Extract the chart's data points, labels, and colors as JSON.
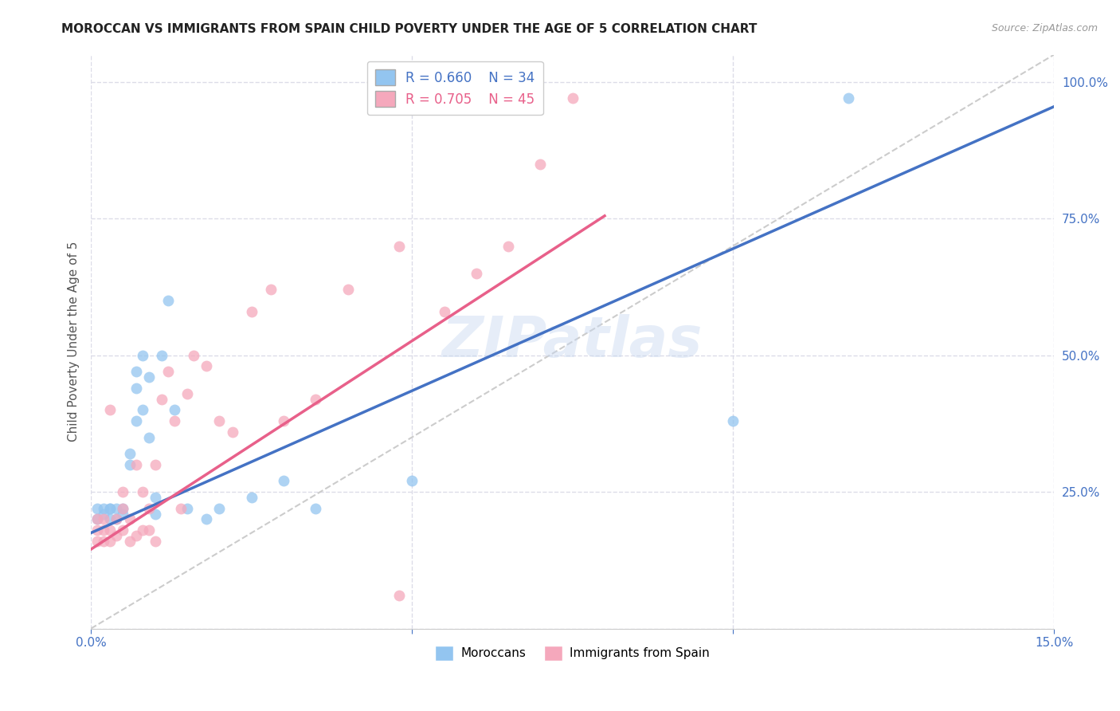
{
  "title": "MOROCCAN VS IMMIGRANTS FROM SPAIN CHILD POVERTY UNDER THE AGE OF 5 CORRELATION CHART",
  "source": "Source: ZipAtlas.com",
  "ylabel": "Child Poverty Under the Age of 5",
  "x_min": 0.0,
  "x_max": 0.15,
  "y_min": 0.0,
  "y_max": 1.05,
  "legend_blue_label": "Moroccans",
  "legend_pink_label": "Immigrants from Spain",
  "r_blue": 0.66,
  "n_blue": 34,
  "r_pink": 0.705,
  "n_pink": 45,
  "blue_color": "#93C5F0",
  "pink_color": "#F5A8BC",
  "blue_line_color": "#4472C4",
  "pink_line_color": "#E8608A",
  "diagonal_color": "#CCCCCC",
  "background_color": "#FFFFFF",
  "grid_color": "#DCDCE8",
  "watermark": "ZIPatlas",
  "blue_points_x": [
    0.001,
    0.001,
    0.002,
    0.002,
    0.003,
    0.003,
    0.003,
    0.004,
    0.004,
    0.005,
    0.005,
    0.006,
    0.006,
    0.007,
    0.007,
    0.007,
    0.008,
    0.008,
    0.009,
    0.009,
    0.01,
    0.01,
    0.011,
    0.012,
    0.013,
    0.015,
    0.018,
    0.02,
    0.025,
    0.03,
    0.035,
    0.05,
    0.1,
    0.118
  ],
  "blue_points_y": [
    0.2,
    0.22,
    0.21,
    0.22,
    0.2,
    0.22,
    0.22,
    0.2,
    0.22,
    0.21,
    0.22,
    0.3,
    0.32,
    0.44,
    0.38,
    0.47,
    0.4,
    0.5,
    0.35,
    0.46,
    0.21,
    0.24,
    0.5,
    0.6,
    0.4,
    0.22,
    0.2,
    0.22,
    0.24,
    0.27,
    0.22,
    0.27,
    0.38,
    0.97
  ],
  "pink_points_x": [
    0.001,
    0.001,
    0.001,
    0.002,
    0.002,
    0.002,
    0.003,
    0.003,
    0.003,
    0.004,
    0.004,
    0.005,
    0.005,
    0.005,
    0.006,
    0.006,
    0.007,
    0.007,
    0.008,
    0.008,
    0.009,
    0.009,
    0.01,
    0.01,
    0.011,
    0.012,
    0.013,
    0.014,
    0.015,
    0.016,
    0.018,
    0.02,
    0.022,
    0.025,
    0.028,
    0.03,
    0.035,
    0.04,
    0.048,
    0.055,
    0.06,
    0.065,
    0.07,
    0.075,
    0.048
  ],
  "pink_points_y": [
    0.16,
    0.18,
    0.2,
    0.16,
    0.18,
    0.2,
    0.16,
    0.18,
    0.4,
    0.17,
    0.2,
    0.18,
    0.22,
    0.25,
    0.16,
    0.2,
    0.17,
    0.3,
    0.18,
    0.25,
    0.18,
    0.22,
    0.16,
    0.3,
    0.42,
    0.47,
    0.38,
    0.22,
    0.43,
    0.5,
    0.48,
    0.38,
    0.36,
    0.58,
    0.62,
    0.38,
    0.42,
    0.62,
    0.7,
    0.58,
    0.65,
    0.7,
    0.85,
    0.97,
    0.06
  ],
  "blue_line_x": [
    0.0,
    0.15
  ],
  "blue_line_y": [
    0.175,
    0.955
  ],
  "pink_line_x": [
    0.0,
    0.08
  ],
  "pink_line_y": [
    0.145,
    0.755
  ]
}
